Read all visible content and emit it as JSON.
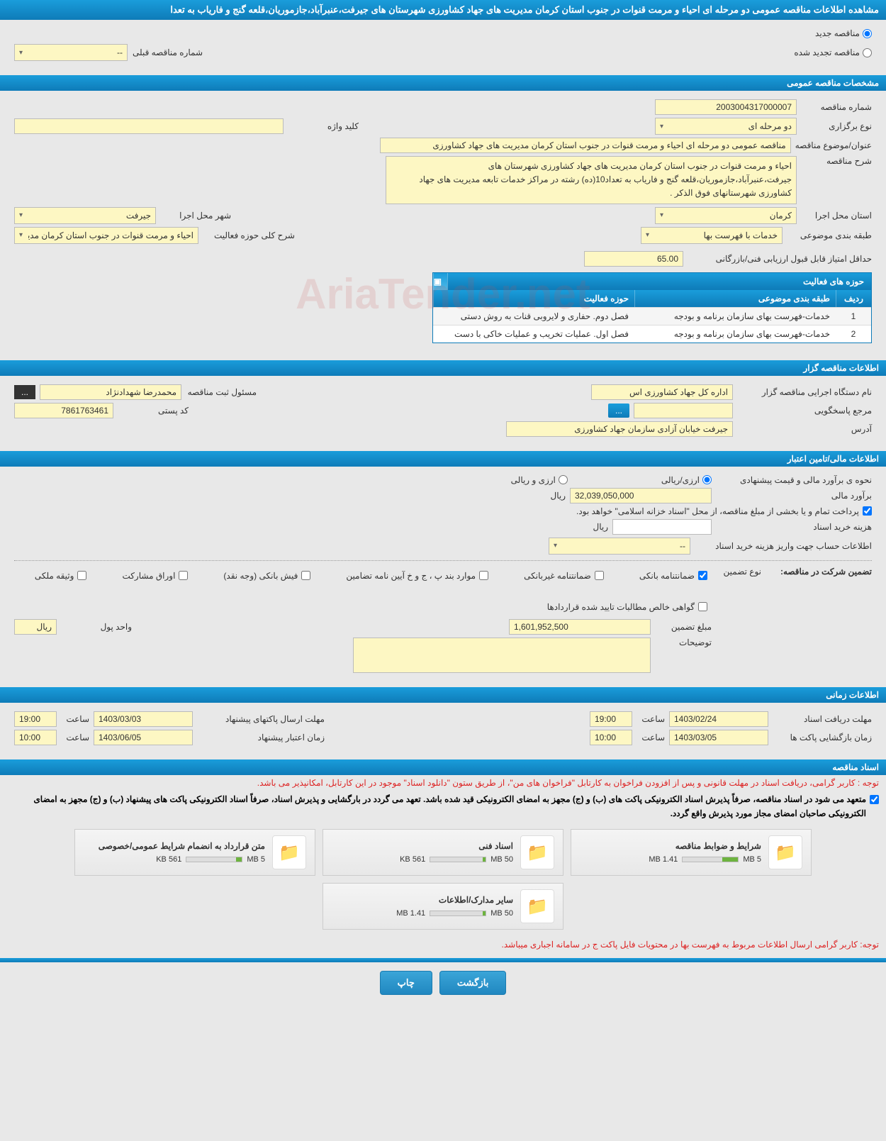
{
  "colors": {
    "primary": "#1a9ddb",
    "primary_dark": "#0e7bb8",
    "field_bg": "#fdf7c3",
    "page_bg": "#e8e8e8",
    "red": "#d22",
    "green": "#6db33f"
  },
  "page_title": "مشاهده اطلاعات مناقصه عمومی دو مرحله ای احیاء و مرمت قنوات در جنوب استان کرمان مدیریت های جهاد کشاورزی شهرستان های جیرفت،عنبرآباد،جازموریان،قلعه گنج و فاریاب به تعدا",
  "top_radios": {
    "new": "مناقصه جدید",
    "renewed": "مناقصه تجدید شده",
    "prev_number_label": "شماره مناقصه قبلی",
    "prev_number_value": "--"
  },
  "sections": {
    "general": "مشخصات مناقصه عمومی",
    "organizer": "اطلاعات مناقصه گزار",
    "financial": "اطلاعات مالی/تامین اعتبار",
    "timing": "اطلاعات زمانی",
    "documents": "اسناد مناقصه"
  },
  "general": {
    "tender_no_label": "شماره مناقصه",
    "tender_no": "2003004317000007",
    "keyword_label": "کلید واژه",
    "keyword": "",
    "type_label": "نوع برگزاری",
    "type": "دو مرحله ای",
    "subject_label": "عنوان/موضوع مناقصه",
    "subject": "مناقصه عمومی دو مرحله ای احیاء و مرمت قنوات در جنوب استان کرمان مدیریت های جهاد کشاورزی",
    "desc_label": "شرح مناقصه",
    "desc": "احیاء و مرمت قنوات در جنوب استان کرمان مدیریت های جهاد کشاورزی شهرستان های جیرفت،عنبرآباد،جازموریان،قلعه گنج و فاریاب به تعداد10(ده) رشته در مراکز خدمات تابعه مدیریت های جهاد کشاورزی شهرستانهای فوق الذکر .",
    "province_label": "استان محل اجرا",
    "province": "کرمان",
    "city_label": "شهر محل اجرا",
    "city": "جیرفت",
    "category_label": "طبقه بندی موضوعی",
    "category": "خدمات با فهرست بها",
    "activity_desc_label": "شرح کلی حوزه فعالیت",
    "activity_desc": "احیاء و مرمت قنوات در جنوب استان کرمان مدیریت های",
    "min_score_label": "حداقل امتیاز قابل قبول ارزیابی فنی/بازرگانی",
    "min_score": "65.00"
  },
  "activity_table": {
    "title": "حوزه های فعالیت",
    "col_num": "ردیف",
    "col_cat": "طبقه بندی موضوعی",
    "col_act": "حوزه فعالیت",
    "rows": [
      {
        "num": "1",
        "cat": "خدمات-فهرست بهای سازمان برنامه و بودجه",
        "act": "فصل دوم. حفاری و لایروبی قنات به روش دستی"
      },
      {
        "num": "2",
        "cat": "خدمات-فهرست بهای سازمان برنامه و بودجه",
        "act": "فصل اول. عملیات تخریب و عملیات خاکی با دست"
      }
    ]
  },
  "organizer": {
    "org_label": "نام دستگاه اجرایی مناقصه گزار",
    "org": "اداره کل جهاد کشاورزی اس",
    "responsible_label": "مسئول ثبت مناقصه",
    "responsible": "محمدرضا شهدادنژاد",
    "contact_label": "مرجع پاسخگویی",
    "contact": "",
    "contact_btn": "...",
    "postal_label": "کد پستی",
    "postal": "7861763461",
    "address_label": "آدرس",
    "address": "جیرفت خیابان آزادی سازمان جهاد کشاورزی"
  },
  "financial": {
    "method_label": "نحوه ی برآورد مالی و قیمت پیشنهادی",
    "method_rial": "ارزی/ریالی",
    "method_both": "ارزی و ریالی",
    "estimate_label": "برآورد مالی",
    "estimate": "32,039,050,000",
    "currency": "ریال",
    "payment_note": "پرداخت تمام و یا بخشی از مبلغ مناقصه، از محل \"اسناد خزانه اسلامی\" خواهد بود.",
    "doc_cost_label": "هزینه خرید اسناد",
    "doc_cost": "",
    "account_info_label": "اطلاعات حساب جهت واریز هزینه خرید اسناد",
    "account_info": "--",
    "guarantee_label": "تضمین شرکت در مناقصه:",
    "guarantee_type_label": "نوع تضمین",
    "guarantee_types": {
      "bank": "ضمانتنامه بانکی",
      "nonbank": "ضمانتنامه غیربانکی",
      "cases": "موارد بند پ ، ج و خ آیین نامه تضامین",
      "cash": "فیش بانکی (وجه نقد)",
      "securities": "اوراق مشارکت",
      "property": "وثیقه ملکی",
      "contract": "گواهی خالص مطالبات تایید شده قراردادها"
    },
    "guarantee_amount_label": "مبلغ تضمین",
    "guarantee_amount": "1,601,952,500",
    "money_unit_label": "واحد پول",
    "money_unit": "ریال",
    "notes_label": "توضیحات",
    "notes": ""
  },
  "timing": {
    "doc_deadline_label": "مهلت دریافت اسناد",
    "doc_deadline_date": "1403/02/24",
    "doc_deadline_time": "19:00",
    "packet_deadline_label": "مهلت ارسال پاکتهای پیشنهاد",
    "packet_deadline_date": "1403/03/03",
    "packet_deadline_time": "19:00",
    "opening_label": "زمان بازگشایی پاکت ها",
    "opening_date": "1403/03/05",
    "opening_time": "10:00",
    "validity_label": "زمان اعتبار پیشنهاد",
    "validity_date": "1403/06/05",
    "validity_time": "10:00",
    "time_label": "ساعت"
  },
  "documents": {
    "note1": "توجه : کاربر گرامی، دریافت اسناد در مهلت قانونی و پس از افزودن فراخوان به کارتابل \"فراخوان های من\"، از طریق ستون \"دانلود اسناد\" موجود در این کارتابل، امکانپذیر می باشد.",
    "note2": "متعهد می شود در اسناد مناقصه، صرفاً پذیرش اسناد الکترونیکی پاکت های (ب) و (ج) مجهز به امضای الکترونیکی قید شده باشد. تعهد می گردد در بارگشایی و پذیرش اسناد، صرفاً اسناد الکترونیکی پاکت های پیشنهاد (ب) و (ج) مجهز به امضای الکترونیکی صاحبان امضای مجاز مورد پذیرش واقع گردد.",
    "note3": "توجه: کاربر گرامی ارسال اطلاعات مربوط به فهرست بها در محتویات فایل پاکت ج در سامانه اجباری میباشد.",
    "files": [
      {
        "title": "شرایط و ضوابط مناقصه",
        "size": "1.41 MB",
        "max": "5 MB",
        "pct": 28
      },
      {
        "title": "اسناد فنی",
        "size": "561 KB",
        "max": "50 MB",
        "pct": 5
      },
      {
        "title": "متن قرارداد به انضمام شرایط عمومی/خصوصی",
        "size": "561 KB",
        "max": "5 MB",
        "pct": 11
      },
      {
        "title": "سایر مدارک/اطلاعات",
        "size": "1.41 MB",
        "max": "50 MB",
        "pct": 5
      }
    ]
  },
  "buttons": {
    "back": "بازگشت",
    "print": "چاپ"
  },
  "watermark": "AriaTender.net"
}
